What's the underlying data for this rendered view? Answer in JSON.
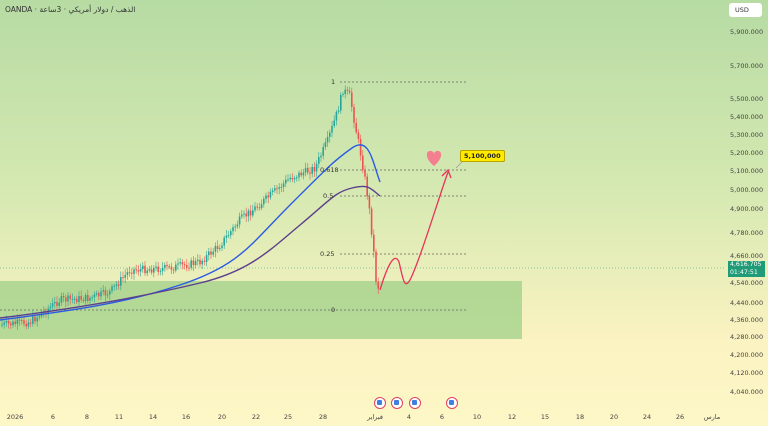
{
  "header": {
    "title": "OANDA · الذهب / دولار أمريكي · 3ساعة",
    "currency": "USD"
  },
  "price_axis": [
    "5,900.000",
    "5,700.000",
    "5,500.000",
    "5,400.000",
    "5,300.000",
    "5,200.000",
    "5,100.000",
    "5,000.000",
    "4,900.000",
    "4,780.000",
    "4,660.000",
    "4,540.000",
    "4,440.000",
    "4,360.000",
    "4,280.000",
    "4,200.000",
    "4,120.000",
    "4,040.000"
  ],
  "current_price": {
    "value": "4,616.705",
    "countdown": "01:47:51",
    "color": "#1f9c77"
  },
  "time_axis": [
    "2026",
    "6",
    "8",
    "11",
    "14",
    "16",
    "20",
    "22",
    "25",
    "28",
    "فبراير",
    "4",
    "6",
    "10",
    "12",
    "15",
    "18",
    "20",
    "24",
    "26",
    "مارس"
  ],
  "fib_levels": [
    "1",
    "0.618",
    "0.5",
    "0.25",
    "0"
  ],
  "target_label": "5,100,000",
  "colors": {
    "up": "#26a69a",
    "down": "#ef5350",
    "ma_fast": "#2d5be3",
    "ma_slow": "#5b3f8c",
    "projection": "#e8325a",
    "zone": "#9fd08a"
  }
}
